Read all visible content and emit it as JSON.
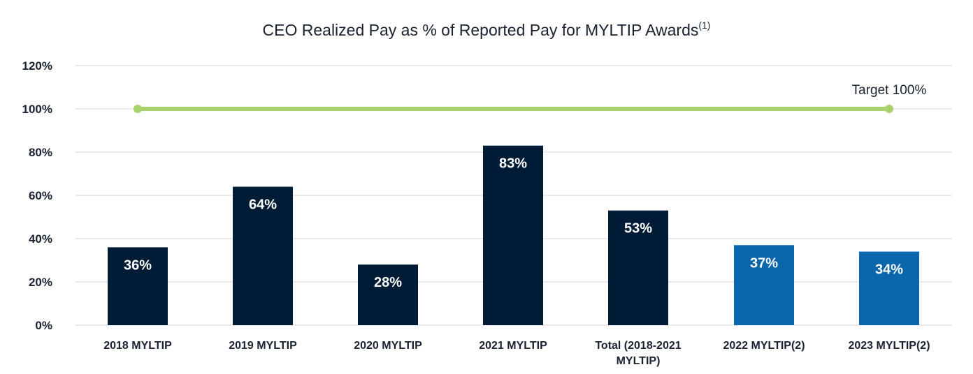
{
  "chart_data": {
    "type": "bar",
    "title": "CEO Realized Pay as % of Reported Pay for MYLTIP Awards",
    "title_footnote": "(1)",
    "xlabel": "",
    "ylabel": "",
    "ylim": [
      0,
      120
    ],
    "yticks": [
      "0%",
      "20%",
      "40%",
      "60%",
      "80%",
      "100%",
      "120%"
    ],
    "ytick_values": [
      0,
      20,
      40,
      60,
      80,
      100,
      120
    ],
    "grid": true,
    "categories": [
      [
        "2018 MYLTIP"
      ],
      [
        "2019 MYLTIP"
      ],
      [
        "2020 MYLTIP"
      ],
      [
        "2021 MYLTIP"
      ],
      [
        "Total (2018-2021",
        "MYLTIP)"
      ],
      [
        "2022 MYLTIP(2)"
      ],
      [
        "2023 MYLTIP(2)"
      ]
    ],
    "values": [
      36,
      64,
      28,
      83,
      53,
      37,
      34
    ],
    "data_labels": [
      "36%",
      "64%",
      "28%",
      "83%",
      "53%",
      "37%",
      "34%"
    ],
    "bar_colors": [
      "#001b36",
      "#001b36",
      "#001b36",
      "#001b36",
      "#001b36",
      "#0a67ab",
      "#0a67ab"
    ],
    "target_line": {
      "value": 100,
      "label": "Target 100%",
      "color": "#a9d26b"
    },
    "colors": {
      "text": "#1a2233",
      "grid": "#e2e4e8",
      "label_on_bar": "#ffffff"
    }
  }
}
